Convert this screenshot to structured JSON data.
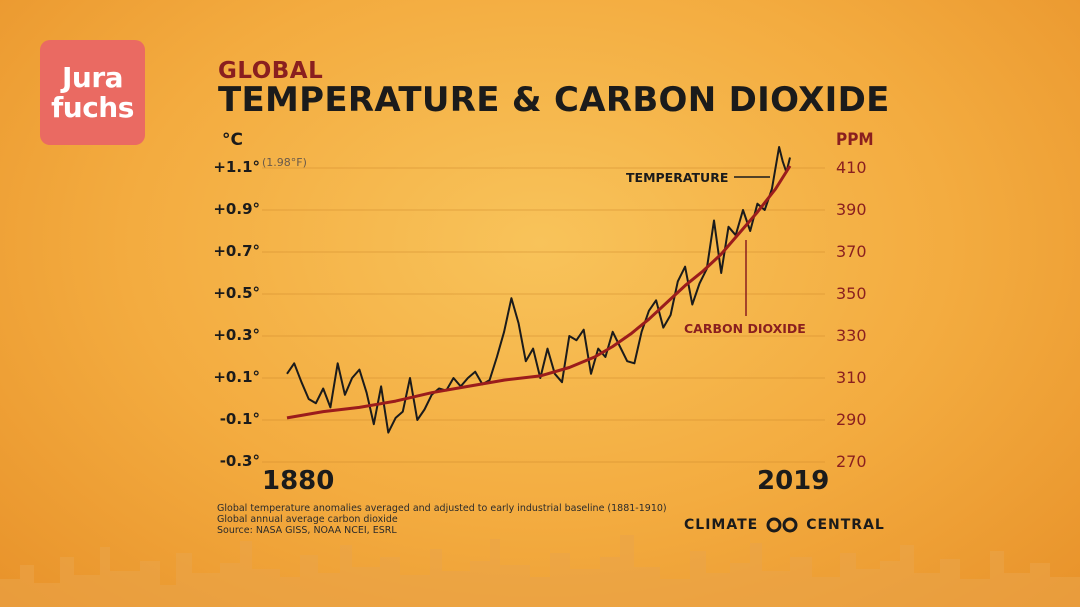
{
  "logo": {
    "line1": "Jura",
    "line2": "fuchs"
  },
  "title": {
    "small": "GLOBAL",
    "big": "TEMPERATURE & CARBON DIOXIDE"
  },
  "chart_data": {
    "type": "line",
    "xlabel_start": "1880",
    "xlabel_end": "2019",
    "left_axis": {
      "unit": "°C",
      "ticks": [
        "+1.1°",
        "+0.9°",
        "+0.7°",
        "+0.5°",
        "+0.3°",
        "+0.1°",
        "-0.1°",
        "-0.3°"
      ],
      "tick_values": [
        1.1,
        0.9,
        0.7,
        0.5,
        0.3,
        0.1,
        -0.1,
        -0.3
      ],
      "ylim": [
        -0.3,
        1.1
      ],
      "top_note": "(1.98°F)"
    },
    "right_axis": {
      "unit": "PPM",
      "ticks": [
        "410",
        "390",
        "370",
        "350",
        "330",
        "310",
        "290",
        "270"
      ],
      "tick_values": [
        410,
        390,
        370,
        350,
        330,
        310,
        290,
        270
      ],
      "ylim": [
        270,
        410
      ]
    },
    "x_range": [
      1880,
      2019
    ],
    "series": [
      {
        "name": "TEMPERATURE",
        "axis": "left",
        "color": "#1b1b1b",
        "x": [
          1880,
          1882,
          1884,
          1886,
          1888,
          1890,
          1892,
          1894,
          1896,
          1898,
          1900,
          1902,
          1904,
          1906,
          1908,
          1910,
          1912,
          1914,
          1916,
          1918,
          1920,
          1922,
          1924,
          1926,
          1928,
          1930,
          1932,
          1934,
          1936,
          1938,
          1940,
          1942,
          1944,
          1946,
          1948,
          1950,
          1952,
          1954,
          1956,
          1958,
          1960,
          1962,
          1964,
          1966,
          1968,
          1970,
          1972,
          1974,
          1976,
          1978,
          1980,
          1982,
          1984,
          1986,
          1988,
          1990,
          1992,
          1994,
          1996,
          1998,
          2000,
          2002,
          2004,
          2006,
          2008,
          2010,
          2012,
          2014,
          2016,
          2017,
          2018,
          2019
        ],
        "values": [
          0.12,
          0.17,
          0.08,
          0.0,
          -0.02,
          0.05,
          -0.04,
          0.17,
          0.02,
          0.1,
          0.14,
          0.03,
          -0.12,
          0.06,
          -0.16,
          -0.09,
          -0.06,
          0.1,
          -0.1,
          -0.05,
          0.02,
          0.05,
          0.04,
          0.1,
          0.06,
          0.1,
          0.13,
          0.07,
          0.09,
          0.2,
          0.32,
          0.48,
          0.36,
          0.18,
          0.24,
          0.1,
          0.24,
          0.12,
          0.08,
          0.3,
          0.28,
          0.33,
          0.12,
          0.24,
          0.2,
          0.32,
          0.25,
          0.18,
          0.17,
          0.32,
          0.42,
          0.47,
          0.34,
          0.4,
          0.56,
          0.63,
          0.45,
          0.55,
          0.62,
          0.85,
          0.6,
          0.82,
          0.78,
          0.9,
          0.8,
          0.93,
          0.9,
          1.0,
          1.2,
          1.13,
          1.08,
          1.15
        ]
      },
      {
        "name": "CARBON DIOXIDE",
        "axis": "right",
        "color": "#9b1c1c",
        "x": [
          1880,
          1890,
          1900,
          1910,
          1920,
          1930,
          1940,
          1950,
          1958,
          1965,
          1970,
          1975,
          1980,
          1985,
          1990,
          1995,
          2000,
          2005,
          2010,
          2015,
          2019
        ],
        "values": [
          291,
          294,
          296,
          299,
          303,
          306,
          309,
          311,
          315,
          320,
          325,
          331,
          338,
          346,
          354,
          361,
          369,
          379,
          389,
          400,
          411
        ]
      }
    ],
    "annotations": {
      "temperature_label": "TEMPERATURE",
      "co2_label": "CARBON DIOXIDE"
    },
    "grid": true
  },
  "footnotes": {
    "line1": "Global temperature anomalies averaged and adjusted to early industrial baseline (1881-1910)",
    "line2": "Global annual average carbon dioxide",
    "line3": "Source: NASA GISS, NOAA NCEI, ESRL"
  },
  "brand": {
    "left": "CLIMATE",
    "right": "CENTRAL"
  },
  "colors": {
    "accent_red": "#8a1f1f",
    "logo_bg": "#ea6a62",
    "background": "#f3ab3f"
  }
}
